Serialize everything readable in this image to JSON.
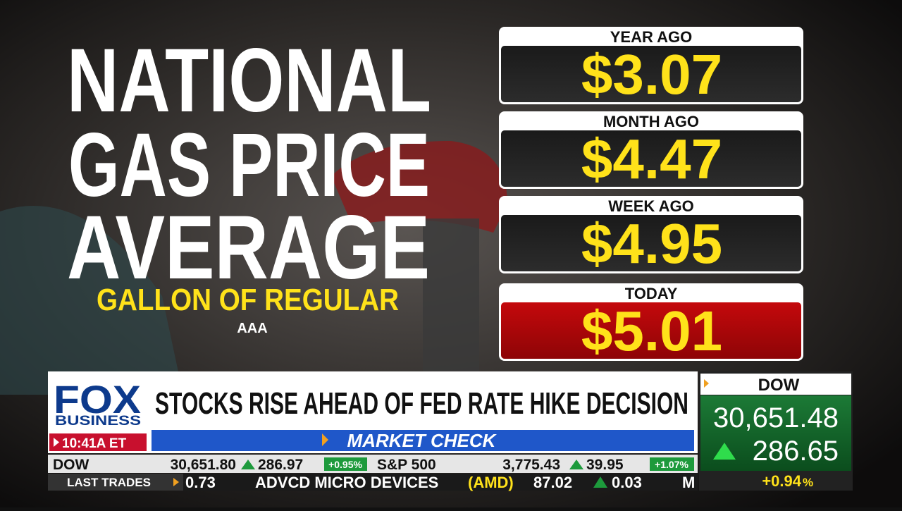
{
  "graphic": {
    "title": [
      "NATIONAL",
      "GAS PRICE",
      "AVERAGE"
    ],
    "subtitle": "GALLON OF REGULAR",
    "source": "AAA",
    "panels": [
      {
        "label": "YEAR AGO",
        "price": "$3.07"
      },
      {
        "label": "MONTH AGO",
        "price": "$4.47"
      },
      {
        "label": "WEEK AGO",
        "price": "$4.95"
      },
      {
        "label": "TODAY",
        "price": "$5.01"
      }
    ]
  },
  "ticker": {
    "logo": "FOX",
    "logo_sub": "BUSINESS",
    "time": "10:41A ET",
    "headline": "STOCKS RISE AHEAD OF FED RATE HIKE DECISION",
    "segment": "MARKET CHECK",
    "quotes": [
      {
        "name": "DOW",
        "price": "30,651.80",
        "change": "286.97",
        "pct": "+0.95%"
      },
      {
        "name": "S&P 500",
        "price": "3,775.43",
        "change": "39.95",
        "pct": "+1.07%"
      }
    ],
    "last_trades": "LAST TRADES",
    "crawl": [
      "0.73",
      "ADVCD MICRO DEVICES",
      "(AMD)",
      "87.02",
      "0.03",
      "M"
    ]
  },
  "side": {
    "name": "DOW",
    "price": "30,651.48",
    "change": "286.65",
    "pct": "+0.94",
    "pct_unit": "%"
  }
}
